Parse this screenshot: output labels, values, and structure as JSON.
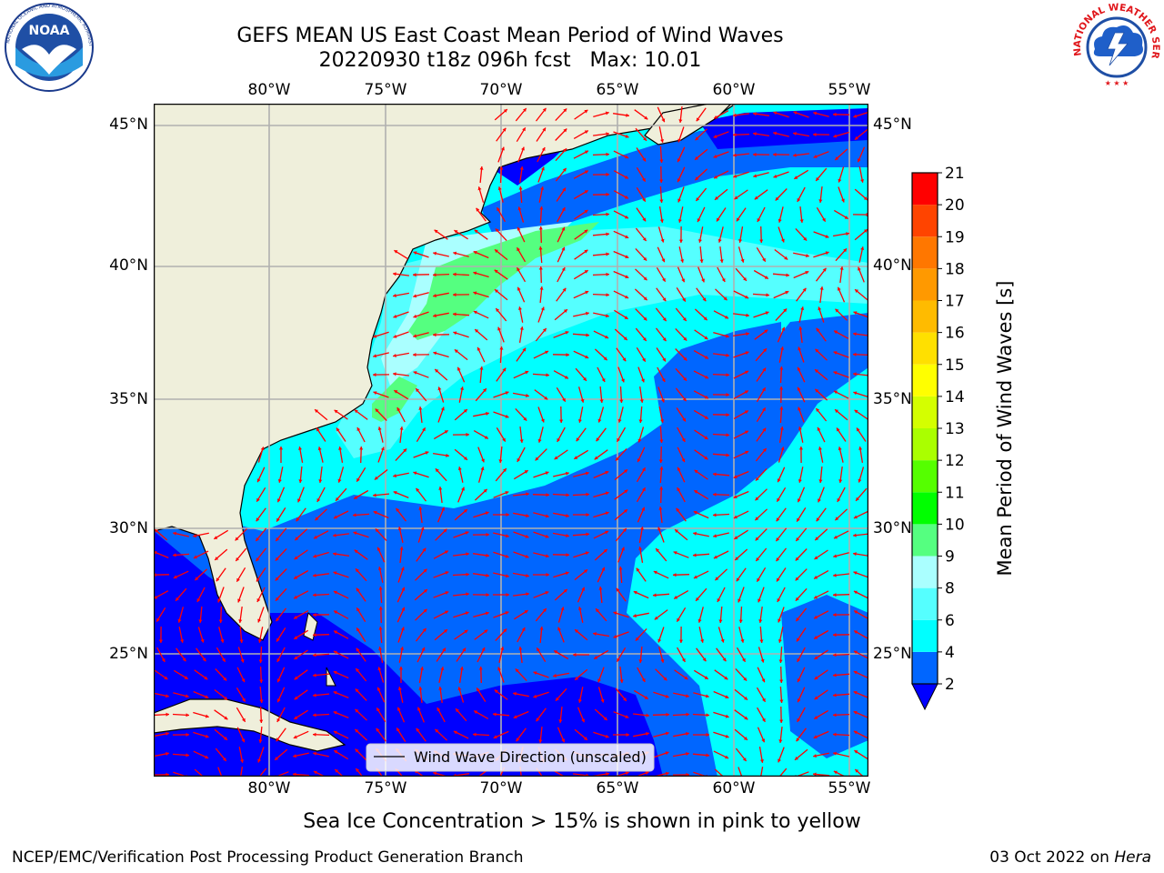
{
  "title": {
    "line1": "GEFS MEAN US East Coast Mean Period of Wind Waves",
    "line2": "20220930 t18z 096h fcst   Max: 10.01"
  },
  "logos": {
    "noaa_text": "NOAA",
    "noaa_ring": "NATIONAL OCEANIC AND ATMOSPHERIC ADMINISTRATION · U.S. DEPARTMENT OF COMMERCE",
    "nws_ring": "NATIONAL WEATHER SERVICE"
  },
  "map": {
    "lon_labels": [
      "80°W",
      "75°W",
      "70°W",
      "65°W",
      "60°W",
      "55°W"
    ],
    "lat_labels": [
      "45°N",
      "40°N",
      "35°N",
      "30°N",
      "25°N"
    ],
    "legend_label": "Wind Wave Direction (unscaled)",
    "arrow_color": "#ff0000",
    "land_color": "#efefdb"
  },
  "colorbar": {
    "title": "Mean Period of Wind Waves [s]",
    "ticks": [
      "2",
      "4",
      "6",
      "8",
      "9",
      "10",
      "11",
      "12",
      "13",
      "14",
      "15",
      "16",
      "17",
      "18",
      "19",
      "20",
      "21"
    ],
    "colors": [
      "#0066ff",
      "#00ffff",
      "#55ffff",
      "#aaffff",
      "#55ff80",
      "#00ff00",
      "#55ff00",
      "#aaff00",
      "#d4ff00",
      "#ffff00",
      "#ffe000",
      "#ffbb00",
      "#ff9900",
      "#ff7700",
      "#ff4400",
      "#ff0000"
    ],
    "under_color": "#0000ff"
  },
  "caption": "Sea Ice Concentration > 15% is shown in pink to yellow",
  "footer": {
    "left": "NCEP/EMC/Verification Post Processing Product Generation Branch",
    "right_prefix": "03 Oct 2022 on ",
    "right_machine": "Hera"
  }
}
